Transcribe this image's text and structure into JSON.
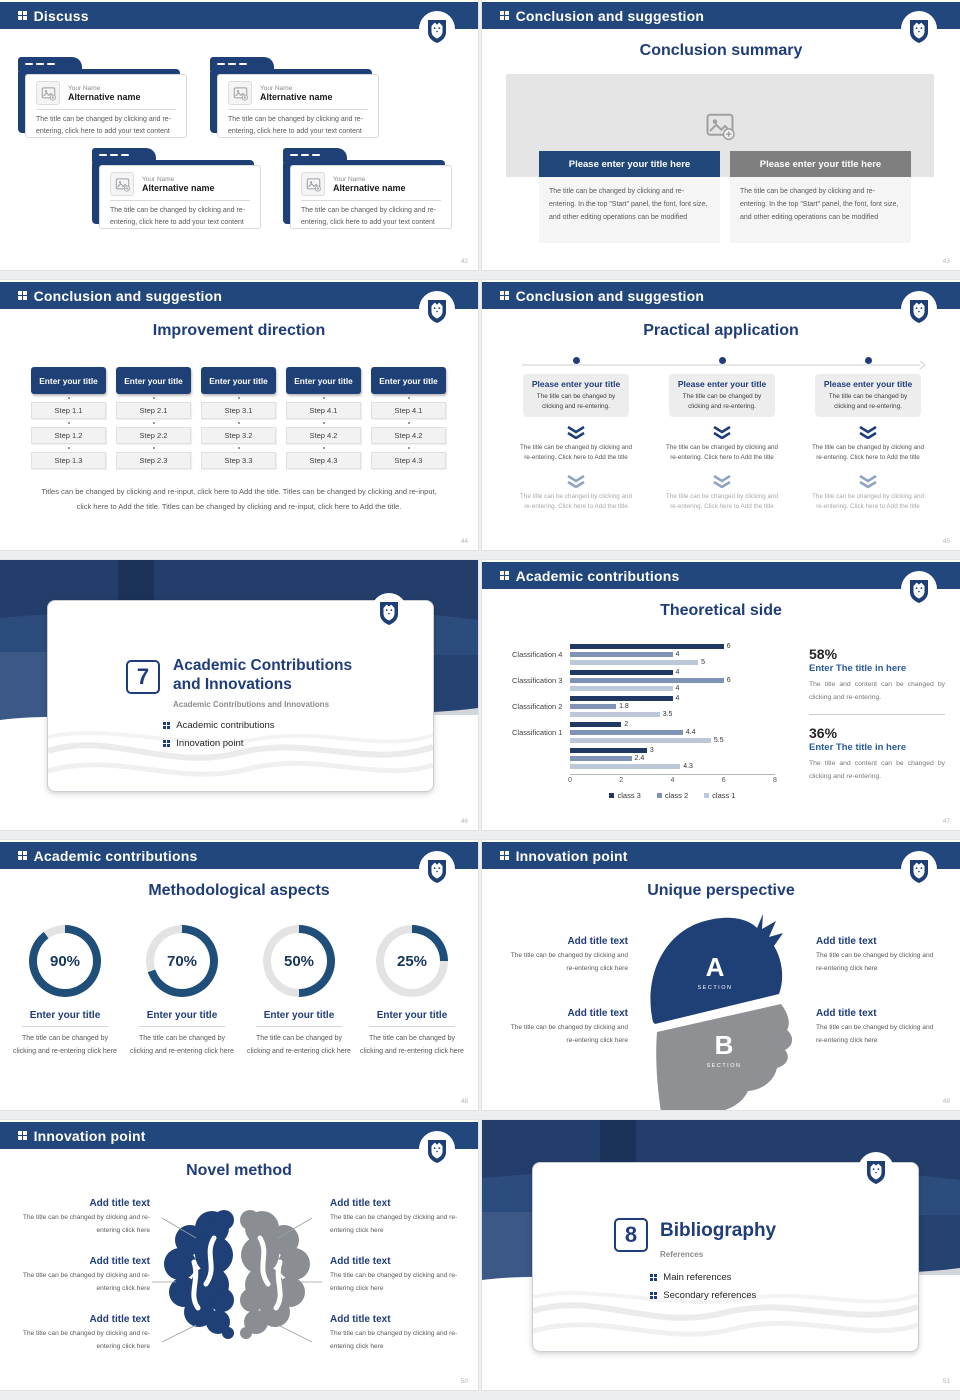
{
  "colors": {
    "header_bar": "#21477c",
    "primary_blue": "#1e4077",
    "title_text": "#1f3d7a",
    "gray_bar": "#7f7f7f",
    "body_text": "#595959",
    "light_text": "#a9a9a9",
    "donut_blue": "#1f4e79",
    "donut_track": "#e3e3e3",
    "series_class3": "#1f3864",
    "series_class2": "#7e93b5",
    "series_class1": "#bcc7d8",
    "head_gray": "#8e9093"
  },
  "chart_data": [
    {
      "type": "bar",
      "orientation": "horizontal",
      "title": "Theoretical side",
      "categories": [
        "Classification 4",
        "Classification 3",
        "Classification 2",
        "Classification 1",
        ""
      ],
      "series": [
        {
          "name": "class 3",
          "color": "#1f3864",
          "values": [
            6,
            4,
            4,
            2,
            3
          ]
        },
        {
          "name": "class 2",
          "color": "#7e93b5",
          "values": [
            4,
            6,
            1.8,
            4.4,
            2.4
          ]
        },
        {
          "name": "class 1",
          "color": "#bcc7d8",
          "values": [
            5,
            4,
            3.5,
            5.5,
            4.3
          ]
        }
      ],
      "xlim": [
        0,
        8
      ],
      "xticks": [
        "0",
        "2",
        "4",
        "6",
        "8"
      ],
      "grid": false,
      "legend_position": "bottom"
    },
    {
      "type": "pie",
      "variant": "donut",
      "title": "Methodological aspects",
      "labels": [
        "90%",
        "70%",
        "50%",
        "25%"
      ],
      "values": [
        90,
        70,
        50,
        25
      ]
    }
  ],
  "slides": {
    "discuss": {
      "header": "Discuss",
      "page": "42",
      "cards": [
        {
          "name_label": "Your Name",
          "title": "Alternative name",
          "body": "The title can be changed by clicking and re-entering, click here to add your text content"
        },
        {
          "name_label": "Your Name",
          "title": "Alternative name",
          "body": "The title can be changed by clicking and re-entering, click here to add your text content"
        },
        {
          "name_label": "Your Name",
          "title": "Alternative name",
          "body": "The title can be changed by clicking and re-entering, click here to add your text content"
        },
        {
          "name_label": "Your Name",
          "title": "Alternative name",
          "body": "The title can be changed by clicking and re-entering, click here to add your text content"
        }
      ]
    },
    "conclusion_summary": {
      "header": "Conclusion and suggestion",
      "page": "43",
      "title": "Conclusion summary",
      "columns": [
        {
          "bar_label": "Please enter your title here",
          "style": "blue",
          "body": "The title can be changed by clicking and re-entering. In the top \"Start\" panel, the font, font size, and other editing operations can be modified"
        },
        {
          "bar_label": "Please enter your title here",
          "style": "gray",
          "body": "The title can be changed by clicking and re-entering. In the top \"Start\" panel, the font, font size, and other editing operations can be modified"
        }
      ]
    },
    "improvement": {
      "header": "Conclusion and suggestion",
      "page": "44",
      "title": "Improvement direction",
      "column_title": "Enter your title",
      "columns": [
        [
          "Step 1.1",
          "Step 1.2",
          "Step 1.3"
        ],
        [
          "Step 2.1",
          "Step 2.2",
          "Step 2.3"
        ],
        [
          "Step 3.1",
          "Step 3.2",
          "Step 3.3"
        ],
        [
          "Step 4.1",
          "Step 4.2",
          "Step 4.3"
        ],
        [
          "Step 4.1",
          "Step 4.2",
          "Step 4.3"
        ]
      ],
      "footer": "Titles can be changed by clicking and re-input, click here to Add the title. Titles can be changed by clicking and re-input, click here to Add the title. Titles can be changed by clicking and re-input, click here to Add the title."
    },
    "practical": {
      "header": "Conclusion and suggestion",
      "page": "45",
      "title": "Practical application",
      "columns": [
        {
          "box_title": "Please enter your title",
          "box_body": "The title can be changed by clicking and re-entering.",
          "mid_text": "The title can be changed by clicking and re-entering. Click here to Add the title",
          "bottom_text": "The title can be changed by clicking and re-entering. Click here to Add the title"
        },
        {
          "box_title": "Please enter your title",
          "box_body": "The title can be changed by clicking and re-entering.",
          "mid_text": "The title can be changed by clicking and re-entering. Click here to Add the title",
          "bottom_text": "The title can be changed by clicking and re-entering. Click here to Add the title"
        },
        {
          "box_title": "Please enter your title",
          "box_body": "The title can be changed by clicking and re-entering.",
          "mid_text": "The title can be changed by clicking and re-entering. Click here to Add the title",
          "bottom_text": "The title can be changed by clicking and re-entering. Click here to Add the title"
        }
      ]
    },
    "section7": {
      "page": "46",
      "number": "7",
      "title_line1": "Academic Contributions",
      "title_line2": "and Innovations",
      "subtitle": "Academic Contributions and Innovations",
      "bullets": [
        "Academic contributions",
        "Innovation point"
      ]
    },
    "theoretical": {
      "header": "Academic contributions",
      "page": "47",
      "title": "Theoretical side",
      "stats": [
        {
          "percent": "58%",
          "title": "Enter The title in here",
          "body": "The title and content can be changed by clicking and re-entering."
        },
        {
          "percent": "36%",
          "title": "Enter The title in here",
          "body": "The title and content can be changed by clicking and re-entering."
        }
      ]
    },
    "methodological": {
      "header": "Academic contributions",
      "page": "48",
      "title": "Methodological aspects",
      "items": [
        {
          "percent_label": "90%",
          "percent": 90,
          "title": "Enter your title",
          "body": "The title can be changed by clicking and re-entering click here"
        },
        {
          "percent_label": "70%",
          "percent": 70,
          "title": "Enter your title",
          "body": "The title can be changed by clicking and re-entering click here"
        },
        {
          "percent_label": "50%",
          "percent": 50,
          "title": "Enter your title",
          "body": "The title can be changed by clicking and re-entering click here"
        },
        {
          "percent_label": "25%",
          "percent": 25,
          "title": "Enter your title",
          "body": "The title can be changed by clicking and re-entering click here"
        }
      ]
    },
    "unique": {
      "header": "Innovation point",
      "page": "49",
      "title": "Unique perspective",
      "sections": [
        {
          "letter": "A",
          "caption": "SECTION"
        },
        {
          "letter": "B",
          "caption": "SECTION"
        }
      ],
      "left_items": [
        {
          "title": "Add title text",
          "body": "The title can be changed by clicking and re-entering click here"
        },
        {
          "title": "Add title text",
          "body": "The title can be changed by clicking and re-entering click here"
        }
      ],
      "right_items": [
        {
          "title": "Add title text",
          "body": "The title can be changed by clicking and re-entering click here"
        },
        {
          "title": "Add title text",
          "body": "The title can be changed by clicking and re-entering click here"
        }
      ]
    },
    "novel": {
      "header": "Innovation point",
      "page": "50",
      "title": "Novel method",
      "left_items": [
        {
          "title": "Add title text",
          "body": "The title can be changed by clicking and re-entering click here"
        },
        {
          "title": "Add title text",
          "body": "The title can be changed by clicking and re-entering click here"
        },
        {
          "title": "Add title text",
          "body": "The title can be changed by clicking and re-entering click here"
        }
      ],
      "right_items": [
        {
          "title": "Add title text",
          "body": "The title can be changed by clicking and re-entering click here"
        },
        {
          "title": "Add title text",
          "body": "The title can be changed by clicking and re-entering click here"
        },
        {
          "title": "Add title text",
          "body": "The title can be changed by clicking and re-entering click here"
        }
      ]
    },
    "section8": {
      "page": "51",
      "number": "8",
      "title_line1": "Bibliography",
      "subtitle": "References",
      "bullets": [
        "Main references",
        "Secondary references"
      ]
    }
  }
}
